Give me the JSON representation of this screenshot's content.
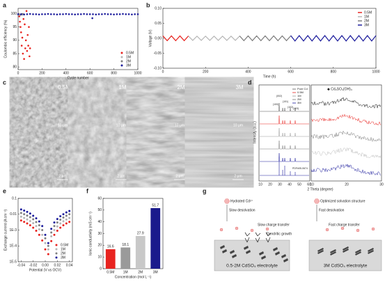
{
  "chart_data": [
    {
      "type": "scatter",
      "label": "a",
      "ylabel": "Coulombic efficiency (%)",
      "xlabel": "Cycle number",
      "xlim": [
        0,
        1000
      ],
      "xticks": [
        0,
        200,
        400,
        600,
        800,
        1000
      ],
      "ylim": [
        79,
        102
      ],
      "yticks": [
        80,
        85,
        90,
        95,
        100
      ],
      "legend": "lower right",
      "series": [
        {
          "name": "0.5M",
          "color": "#e8231f",
          "x": [
            5,
            10,
            15,
            20,
            25,
            30,
            35,
            40,
            45,
            50,
            55,
            60,
            65,
            70,
            75,
            80,
            85,
            90,
            95,
            100
          ],
          "values": [
            100,
            99,
            97,
            95,
            93,
            88,
            91,
            85,
            98,
            83,
            96,
            87,
            90,
            101,
            86,
            92,
            88,
            95,
            84,
            87
          ]
        },
        {
          "name": "1M",
          "color": "#b5b5b5",
          "x": [
            5,
            15,
            25,
            35,
            45
          ],
          "values": [
            100,
            99.5,
            99.8,
            99.6,
            99.9
          ]
        },
        {
          "name": "2M",
          "color": "#7f7f7f",
          "x": [
            5,
            20,
            35,
            50
          ],
          "values": [
            99.8,
            99.6,
            99.9,
            99.7
          ]
        },
        {
          "name": "3M",
          "color": "#1c1c9c",
          "x": [
            0,
            25,
            50,
            75,
            100,
            125,
            150,
            175,
            200,
            225,
            250,
            275,
            300,
            325,
            350,
            375,
            400,
            425,
            450,
            475,
            500,
            525,
            550,
            575,
            600,
            620,
            625,
            650,
            675,
            700,
            725,
            750,
            775,
            800,
            825,
            850,
            875,
            900,
            925,
            950,
            975,
            1000
          ],
          "values": [
            99.8,
            99.8,
            99.7,
            99.8,
            99.9,
            99.8,
            99.8,
            99.7,
            99.8,
            99.8,
            99.9,
            99.8,
            99.8,
            99.7,
            99.8,
            99.8,
            99.9,
            99.8,
            99.8,
            99.7,
            99.8,
            99.8,
            99.9,
            99.8,
            99.8,
            98.3,
            99.8,
            99.7,
            99.8,
            99.8,
            99.9,
            99.8,
            99.8,
            99.7,
            99.8,
            99.8,
            99.9,
            99.8,
            99.8,
            99.7,
            99.8,
            99.8
          ]
        }
      ]
    },
    {
      "type": "line",
      "label": "b",
      "ylabel": "Voltage (V)",
      "xlabel": "Time (h)",
      "xlim": [
        0,
        1000
      ],
      "xticks": [
        0,
        200,
        400,
        600,
        800,
        1000
      ],
      "ylim": [
        -0.1,
        0.1
      ],
      "yticks": [
        {
          "value": -0.1,
          "label": "-0.10"
        },
        -0.05,
        {
          "value": 0,
          "label": "0.00"
        },
        0.05,
        {
          "value": 0.1,
          "label": "0.10"
        }
      ],
      "legend": "upper right",
      "series": [
        {
          "name": "0.5M",
          "color": "#e8231f",
          "x": [
            0,
            20,
            40,
            60,
            80,
            100,
            120
          ],
          "values": [
            0.008,
            -0.008,
            0.008,
            -0.008,
            0.008,
            -0.008,
            0.008
          ]
        },
        {
          "name": "1M",
          "color": "#b5b5b5",
          "x": [
            120,
            140,
            160,
            180,
            200,
            220,
            240,
            260,
            280,
            300,
            320,
            340,
            360
          ],
          "values": [
            0.007,
            -0.007,
            0.007,
            -0.007,
            0.007,
            -0.007,
            0.007,
            -0.007,
            0.007,
            -0.007,
            0.007,
            -0.007,
            0.007
          ]
        },
        {
          "name": "2M",
          "color": "#7f7f7f",
          "x": [
            360,
            380,
            400,
            420,
            440,
            460,
            480,
            500,
            520,
            540,
            560,
            580,
            600
          ],
          "values": [
            0.008,
            -0.008,
            0.008,
            -0.008,
            0.008,
            -0.008,
            0.008,
            -0.008,
            0.008,
            -0.008,
            0.008,
            -0.008,
            0.008
          ]
        },
        {
          "name": "3M",
          "color": "#1c1c9c",
          "x": [
            600,
            620,
            640,
            660,
            680,
            700,
            720,
            740,
            760,
            780,
            800,
            820,
            840,
            860,
            880,
            900,
            920,
            940,
            960,
            980,
            1000
          ],
          "values": [
            0.009,
            -0.009,
            0.009,
            -0.009,
            0.009,
            -0.009,
            0.009,
            -0.009,
            0.009,
            -0.009,
            0.009,
            -0.009,
            0.009,
            -0.009,
            0.009,
            -0.009,
            0.009,
            -0.009,
            0.009,
            -0.009,
            0.009
          ]
        }
      ]
    },
    {
      "type": "scatter",
      "label": "e",
      "ylog": true,
      "ylabel": "Exchange current (A cm⁻²)",
      "xlabel": "Potential (V vs OCV)",
      "xlim": [
        -0.045,
        0.045
      ],
      "xticks": [
        -0.04,
        -0.02,
        {
          "value": 0,
          "label": "0.00"
        },
        0.02,
        0.04
      ],
      "ylim": [
        1e-05,
        0.1
      ],
      "yticks": [
        {
          "value": 1e-05,
          "label": "1E-5"
        },
        {
          "value": 0.0001,
          "label": "1E-4"
        },
        {
          "value": 0.001,
          "label": "1E-3"
        },
        0.01,
        0.1
      ],
      "legend": "lower right",
      "series": [
        {
          "name": "0.5M",
          "color": "#e8231f",
          "x": [
            -0.04,
            -0.035,
            -0.03,
            -0.025,
            -0.02,
            -0.015,
            -0.01,
            -0.005,
            0,
            0.005,
            0.01,
            0.015,
            0.02,
            0.025,
            0.03,
            0.035,
            0.04
          ],
          "values": [
            0.004,
            0.0033,
            0.0026,
            0.002,
            0.0014,
            0.0009,
            0.0005,
            0.00022,
            6e-05,
            3e-05,
            0.0002,
            0.0005,
            0.0009,
            0.0014,
            0.002,
            0.0026,
            0.0033
          ]
        },
        {
          "name": "1M",
          "color": "#b5b5b5",
          "x": [
            -0.04,
            -0.035,
            -0.03,
            -0.025,
            -0.02,
            -0.015,
            -0.01,
            -0.005,
            0,
            0.005,
            0.01,
            0.015,
            0.02,
            0.025,
            0.03,
            0.035,
            0.04
          ],
          "values": [
            0.007,
            0.0058,
            0.0047,
            0.0037,
            0.0027,
            0.0018,
            0.0011,
            0.0005,
            0.00015,
            6e-05,
            0.0004,
            0.001,
            0.0017,
            0.0026,
            0.0036,
            0.0046,
            0.0058
          ]
        },
        {
          "name": "2M",
          "color": "#7f7f7f",
          "x": [
            -0.04,
            -0.035,
            -0.03,
            -0.025,
            -0.02,
            -0.015,
            -0.01,
            -0.005,
            0,
            0.005,
            0.01,
            0.015,
            0.02,
            0.025,
            0.03,
            0.035,
            0.04
          ],
          "values": [
            0.012,
            0.01,
            0.0082,
            0.0065,
            0.0048,
            0.0032,
            0.002,
            0.001,
            0.0003,
            0.0001,
            0.0007,
            0.0018,
            0.003,
            0.0045,
            0.0062,
            0.008,
            0.01
          ]
        },
        {
          "name": "3M",
          "color": "#1c1c9c",
          "x": [
            -0.04,
            -0.035,
            -0.03,
            -0.025,
            -0.02,
            -0.015,
            -0.01,
            -0.005,
            0,
            0.005,
            0.01,
            0.015,
            0.02,
            0.025,
            0.03,
            0.035,
            0.04
          ],
          "values": [
            0.02,
            0.017,
            0.014,
            0.011,
            0.008,
            0.0055,
            0.0035,
            0.0018,
            0.0005,
            0.00015,
            0.0012,
            0.003,
            0.005,
            0.0075,
            0.01,
            0.013,
            0.016
          ]
        }
      ]
    },
    {
      "type": "bar",
      "label": "f",
      "ylabel": "Ionic conductivity (mS cm⁻¹)",
      "xlabel": "Concentration (mol L⁻¹)",
      "categories": [
        "0.5M",
        "1M",
        "2M",
        "3M"
      ],
      "values": [
        16.6,
        18.1,
        27.9,
        51.7
      ],
      "colors": [
        "#e8231f",
        "#9a9a9a",
        "#c8c8c8",
        "#1a1a8c"
      ],
      "ylim": [
        0,
        60
      ],
      "yticks": [
        0,
        10,
        20,
        30,
        40,
        50,
        60
      ]
    }
  ],
  "panel_c": {
    "label": "c",
    "concentrations": [
      "0.5M",
      "1M",
      "2M",
      "3M"
    ],
    "scale_top": "10 μm",
    "scale_bottom": "2 μm"
  },
  "panel_d": {
    "label": "d",
    "legend": [
      "Pure Cd",
      "0.5M",
      "1M",
      "2M",
      "3M"
    ],
    "peaks": [
      "(002)",
      "(100)",
      "(101)",
      "(102)",
      "(103)"
    ],
    "reference": "PDF#05-0674",
    "xticks_left": [
      "10",
      "20",
      "30",
      "40",
      "50",
      "60"
    ],
    "xticks_right": [
      "10",
      "20",
      "30"
    ],
    "ylabel": "Intensity (a.u.)",
    "xlabel": "2 Theta (degree)",
    "annotation": "◆ Cd₃SO₄(OH)₄"
  },
  "panel_g": {
    "label": "g",
    "left": {
      "ion": "Hydrated Cd²⁺",
      "step1": "Slow desolvation",
      "step2": "Slow charge transfer",
      "growth": "Dendritic growth",
      "caption": "0.5-2M CdSO₄ electrolyte"
    },
    "right": {
      "ion": "Optimized solvation structure",
      "step1": "Fast desolvation",
      "step2": "Fast charge transfer",
      "caption": "3M CdSO₄ electrolyte"
    }
  }
}
